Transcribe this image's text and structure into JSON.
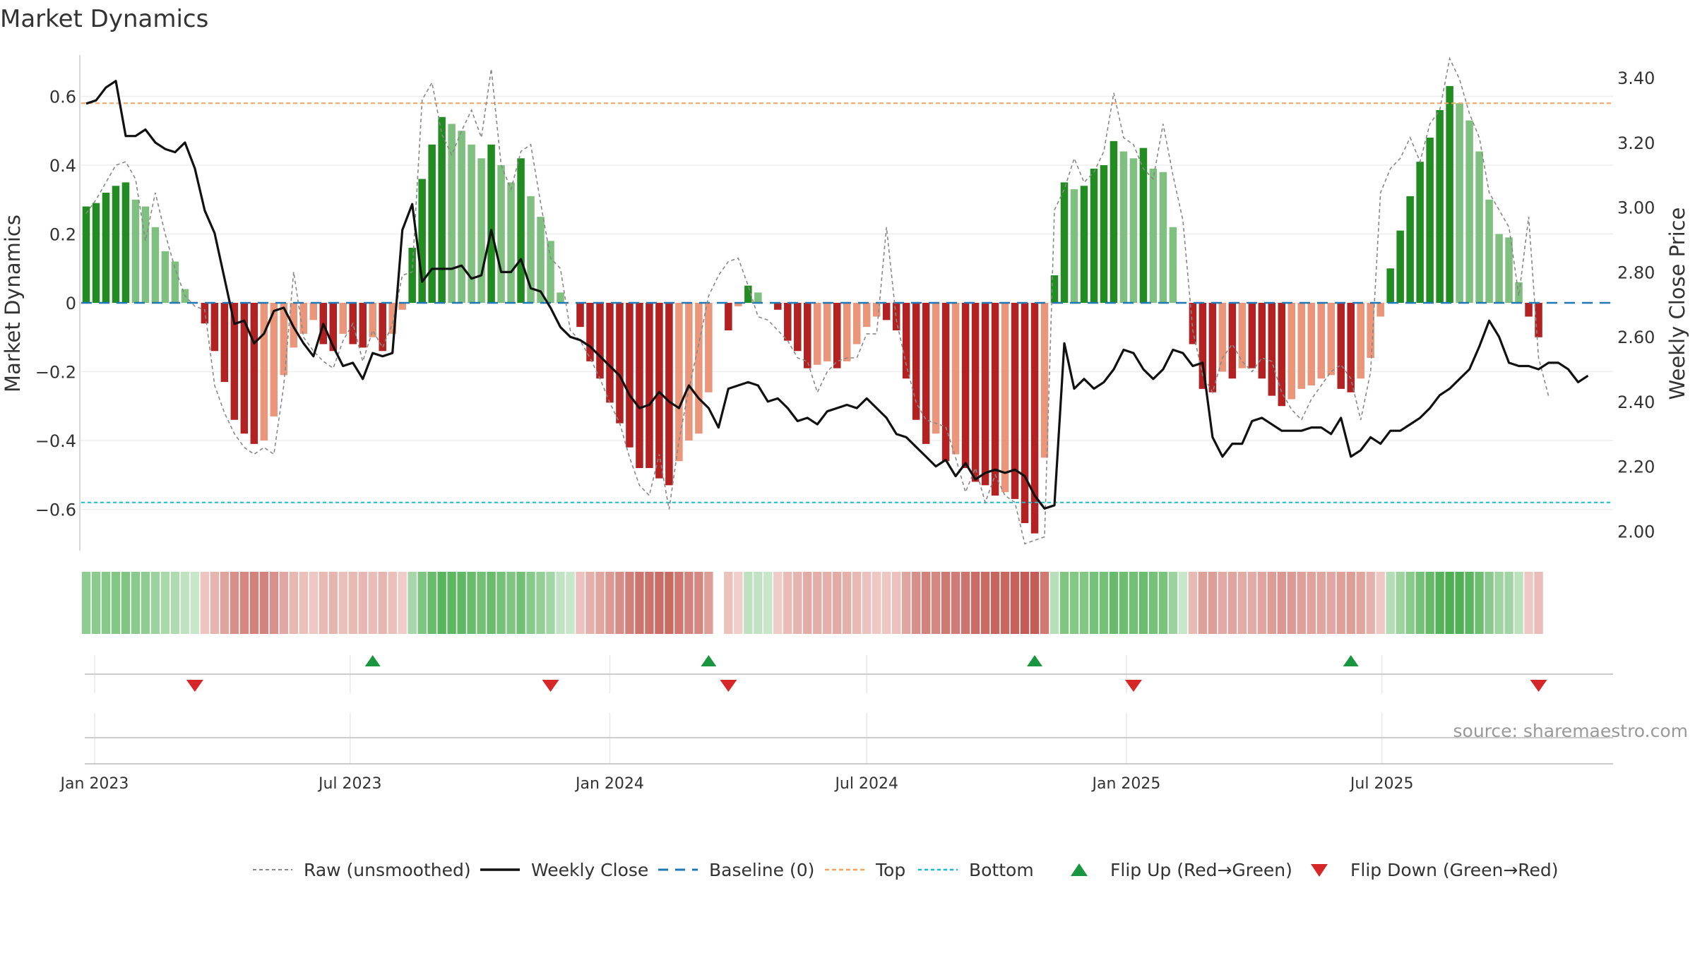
{
  "title": "Market Dynamics",
  "source": "source: sharemaestro.com",
  "left_axis": {
    "label": "Market Dynamics",
    "ticks": [
      "0.6",
      "0.4",
      "0.2",
      "0",
      "−0.2",
      "−0.4",
      "−0.6"
    ],
    "tick_values": [
      0.6,
      0.4,
      0.2,
      0,
      -0.2,
      -0.4,
      -0.6
    ]
  },
  "right_axis": {
    "label": "Weekly Close Price",
    "ticks": [
      "3.40",
      "3.20",
      "3.00",
      "2.80",
      "2.60",
      "2.40",
      "2.20",
      "2.00"
    ],
    "tick_values": [
      3.4,
      3.2,
      3.0,
      2.8,
      2.6,
      2.4,
      2.2,
      2.0
    ]
  },
  "x_ticks": [
    "Jan 2023",
    "Jul 2023",
    "Jan 2024",
    "Jul 2024",
    "Jan 2025",
    "Jul 2025"
  ],
  "legend": [
    {
      "label": "Raw (unsmoothed)",
      "style": "raw"
    },
    {
      "label": "Weekly Close",
      "style": "close"
    },
    {
      "label": "Baseline (0)",
      "style": "base"
    },
    {
      "label": "Top",
      "style": "top"
    },
    {
      "label": "Bottom",
      "style": "bottom"
    },
    {
      "label": "Flip Up (Red→Green)",
      "style": "up"
    },
    {
      "label": "Flip Down (Green→Red)",
      "style": "down"
    }
  ],
  "colors": {
    "green_dark": "#228b22",
    "green_light": "#7fbf7f",
    "red_dark": "#b22222",
    "red_light": "#e9967a",
    "close": "#111111",
    "raw": "#888888",
    "baseline": "#1f77b4",
    "top": "#f4a460",
    "bottom": "#17becf",
    "flip_up": "#1a9641",
    "flip_down": "#d62728"
  },
  "chart_data": {
    "type": "bar",
    "start_week": "2022-12-26",
    "ylim_left": [
      -0.72,
      0.72
    ],
    "ylim_right": [
      1.94,
      3.47
    ],
    "thresholds": {
      "top": 0.58,
      "bottom": -0.58,
      "baseline": 0
    },
    "smoothed": [
      0.28,
      0.29,
      0.32,
      0.34,
      0.35,
      0.3,
      0.28,
      0.22,
      0.15,
      0.12,
      0.04,
      0,
      -0.06,
      -0.14,
      -0.23,
      -0.34,
      -0.38,
      -0.41,
      -0.4,
      -0.33,
      -0.21,
      -0.13,
      -0.09,
      -0.05,
      -0.12,
      -0.14,
      -0.09,
      -0.12,
      -0.13,
      -0.1,
      -0.14,
      -0.09,
      -0.02,
      0.16,
      0.36,
      0.46,
      0.54,
      0.52,
      0.5,
      0.46,
      0.42,
      0.46,
      0.4,
      0.35,
      0.42,
      0.31,
      0.25,
      0.18,
      0.03,
      0,
      -0.07,
      -0.17,
      -0.22,
      -0.29,
      -0.35,
      -0.42,
      -0.48,
      -0.48,
      -0.51,
      -0.53,
      -0.46,
      -0.4,
      -0.38,
      -0.26,
      0,
      -0.08,
      -0.01,
      0.05,
      0.03,
      0,
      -0.02,
      -0.11,
      -0.14,
      -0.19,
      -0.18,
      -0.17,
      -0.19,
      -0.17,
      -0.12,
      -0.07,
      -0.04,
      -0.05,
      -0.08,
      -0.22,
      -0.34,
      -0.41,
      -0.38,
      -0.46,
      -0.44,
      -0.48,
      -0.52,
      -0.53,
      -0.56,
      -0.55,
      -0.57,
      -0.64,
      -0.67,
      -0.45,
      0.08,
      0.35,
      0.33,
      0.34,
      0.39,
      0.4,
      0.47,
      0.44,
      0.42,
      0.45,
      0.39,
      0.38,
      0.22,
      0,
      -0.12,
      -0.25,
      -0.26,
      -0.2,
      -0.22,
      -0.19,
      -0.19,
      -0.22,
      -0.27,
      -0.3,
      -0.28,
      -0.25,
      -0.24,
      -0.22,
      -0.21,
      -0.25,
      -0.26,
      -0.22,
      -0.16,
      -0.04,
      0.1,
      0.21,
      0.31,
      0.41,
      0.48,
      0.56,
      0.63,
      0.58,
      0.53,
      0.44,
      0.3,
      0.2,
      0.19,
      0.06,
      -0.04,
      -0.1
    ],
    "raw": [
      0.26,
      0.3,
      0.35,
      0.4,
      0.41,
      0.36,
      0.18,
      0.32,
      0.2,
      0.1,
      0.02,
      -0.01,
      -0.02,
      -0.24,
      -0.32,
      -0.38,
      -0.42,
      -0.44,
      -0.42,
      -0.44,
      -0.24,
      0.09,
      -0.1,
      -0.14,
      -0.17,
      -0.19,
      -0.11,
      -0.06,
      -0.17,
      -0.08,
      -0.13,
      -0.06,
      0.08,
      0.09,
      0.59,
      0.64,
      0.49,
      0.43,
      0.5,
      0.56,
      0.48,
      0.68,
      0.4,
      0.33,
      0.44,
      0.46,
      0.29,
      0.13,
      0.1,
      -0.08,
      -0.11,
      -0.16,
      -0.22,
      -0.29,
      -0.35,
      -0.45,
      -0.53,
      -0.56,
      -0.44,
      -0.6,
      -0.4,
      -0.25,
      -0.12,
      0.02,
      0.08,
      0.12,
      0.13,
      0.05,
      -0.04,
      -0.05,
      -0.08,
      -0.11,
      -0.16,
      -0.17,
      -0.26,
      -0.2,
      -0.17,
      -0.16,
      -0.16,
      -0.09,
      -0.09,
      0.22,
      -0.05,
      -0.18,
      -0.29,
      -0.34,
      -0.35,
      -0.36,
      -0.45,
      -0.55,
      -0.48,
      -0.58,
      -0.5,
      -0.56,
      -0.58,
      -0.7,
      -0.69,
      -0.68,
      0.27,
      0.33,
      0.42,
      0.35,
      0.38,
      0.44,
      0.61,
      0.48,
      0.46,
      0.39,
      0.36,
      0.52,
      0.37,
      0.24,
      -0.08,
      -0.21,
      -0.26,
      -0.16,
      -0.12,
      -0.17,
      -0.2,
      -0.16,
      -0.17,
      -0.26,
      -0.31,
      -0.34,
      -0.28,
      -0.24,
      -0.2,
      -0.18,
      -0.22,
      -0.34,
      -0.2,
      0.32,
      0.39,
      0.42,
      0.48,
      0.41,
      0.52,
      0.56,
      0.71,
      0.65,
      0.55,
      0.48,
      0.32,
      0.27,
      0.22,
      0.02,
      0.25,
      -0.16,
      -0.27
    ],
    "close": [
      3.32,
      3.33,
      3.37,
      3.39,
      3.22,
      3.22,
      3.24,
      3.2,
      3.18,
      3.17,
      3.2,
      3.12,
      2.99,
      2.92,
      2.78,
      2.64,
      2.65,
      2.58,
      2.61,
      2.68,
      2.69,
      2.63,
      2.58,
      2.54,
      2.64,
      2.57,
      2.51,
      2.52,
      2.47,
      2.55,
      2.54,
      2.55,
      2.93,
      3.01,
      2.77,
      2.81,
      2.81,
      2.81,
      2.82,
      2.78,
      2.79,
      2.93,
      2.8,
      2.8,
      2.84,
      2.75,
      2.74,
      2.69,
      2.63,
      2.6,
      2.59,
      2.57,
      2.54,
      2.51,
      2.48,
      2.42,
      2.38,
      2.39,
      2.43,
      2.4,
      2.38,
      2.45,
      2.41,
      2.38,
      2.32,
      2.44,
      2.45,
      2.46,
      2.45,
      2.4,
      2.41,
      2.38,
      2.34,
      2.35,
      2.33,
      2.37,
      2.38,
      2.39,
      2.38,
      2.41,
      2.38,
      2.35,
      2.3,
      2.29,
      2.26,
      2.23,
      2.2,
      2.22,
      2.17,
      2.21,
      2.16,
      2.18,
      2.19,
      2.18,
      2.19,
      2.17,
      2.11,
      2.07,
      2.08,
      2.58,
      2.44,
      2.47,
      2.44,
      2.46,
      2.5,
      2.56,
      2.55,
      2.5,
      2.47,
      2.5,
      2.56,
      2.55,
      2.51,
      2.52,
      2.29,
      2.23,
      2.27,
      2.27,
      2.34,
      2.35,
      2.33,
      2.31,
      2.31,
      2.31,
      2.32,
      2.32,
      2.3,
      2.35,
      2.23,
      2.25,
      2.29,
      2.27,
      2.31,
      2.31,
      2.33,
      2.35,
      2.38,
      2.42,
      2.44,
      2.47,
      2.5,
      2.57,
      2.65,
      2.6,
      2.52,
      2.51,
      2.51,
      2.5,
      2.52,
      2.52,
      2.5,
      2.46,
      2.48
    ],
    "heat_gap_index": 64,
    "flips": [
      {
        "type": "down",
        "date": "2023-03-13"
      },
      {
        "type": "up",
        "date": "2023-07-17"
      },
      {
        "type": "down",
        "date": "2023-11-20"
      },
      {
        "type": "up",
        "date": "2024-03-11"
      },
      {
        "type": "down",
        "date": "2024-03-25"
      },
      {
        "type": "up",
        "date": "2024-10-28"
      },
      {
        "type": "down",
        "date": "2025-01-06"
      },
      {
        "type": "up",
        "date": "2025-06-09"
      },
      {
        "type": "down",
        "date": "2025-10-20"
      }
    ]
  }
}
